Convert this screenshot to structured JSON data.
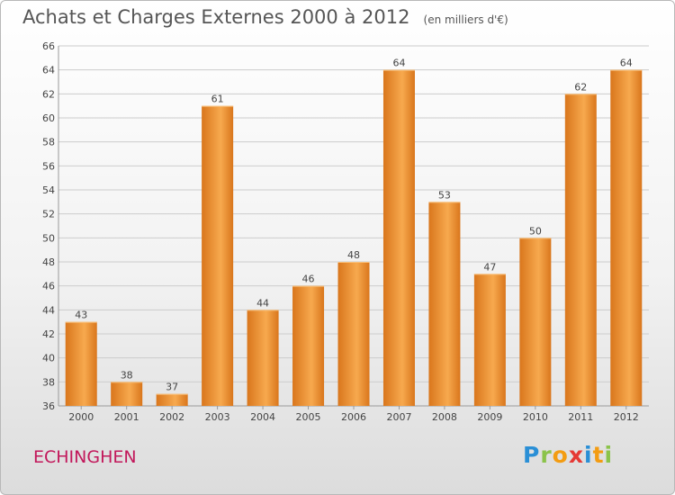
{
  "header": {
    "title": "Achats et Charges Externes 2000 à 2012",
    "unit": "(en milliers d'€)"
  },
  "commune": "ECHINGHEN",
  "logo": "Proxiti",
  "colors": {
    "bar_light": "#f7a94e",
    "bar_dark": "#d9761c",
    "grid": "#cccccc",
    "commune_text": "#c2185b"
  },
  "chart_data": {
    "type": "bar",
    "title": "Achats et Charges Externes 2000 à 2012",
    "subtitle": "(en milliers d'€)",
    "xlabel": "",
    "ylabel": "",
    "categories": [
      "2000",
      "2001",
      "2002",
      "2003",
      "2004",
      "2005",
      "2006",
      "2007",
      "2008",
      "2009",
      "2010",
      "2011",
      "2012"
    ],
    "values": [
      43,
      38,
      37,
      61,
      44,
      46,
      48,
      64,
      53,
      47,
      50,
      62,
      64
    ],
    "ylim": [
      36,
      66
    ],
    "yticks": [
      36,
      38,
      40,
      42,
      44,
      46,
      48,
      50,
      52,
      54,
      56,
      58,
      60,
      62,
      64,
      66
    ],
    "grid": true,
    "data_labels": true
  }
}
